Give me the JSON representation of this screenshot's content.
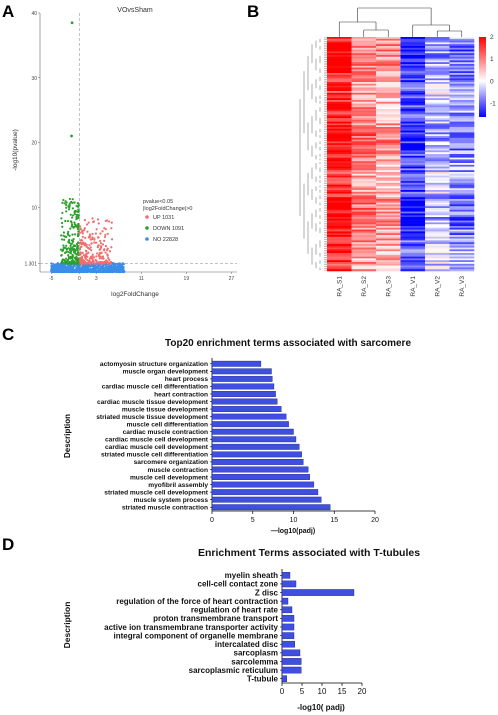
{
  "panels": {
    "a": {
      "letter": "A"
    },
    "b": {
      "letter": "B"
    },
    "c": {
      "letter": "C"
    },
    "d": {
      "letter": "D"
    }
  },
  "colors": {
    "up": "#f26d6d",
    "down": "#2ca02c",
    "no": "#3b8ee8",
    "bar": "#3f4fe0",
    "heat_high": "#ff0000",
    "heat_low": "#0000ff"
  },
  "chart_data": [
    {
      "id": "volcano",
      "type": "scatter",
      "title": "VOvsSham",
      "xlabel": "log2FoldChange",
      "ylabel": "-log10(pvalue)",
      "xlim": [
        -7,
        28
      ],
      "ylim": [
        0,
        40
      ],
      "x_ticks": [
        "-5",
        "0",
        "3",
        "11",
        "19",
        "27"
      ],
      "x_tick_values": [
        -5,
        0,
        3,
        11,
        19,
        27
      ],
      "y_ticks": [
        "1.301",
        "10",
        "20",
        "30",
        "40"
      ],
      "y_tick_values": [
        1.301,
        10,
        20,
        30,
        40
      ],
      "threshold_y": 1.301,
      "threshold_x": 0,
      "legend_title": [
        "pvalue<0.05",
        "|log2FoldChange|>0"
      ],
      "legend_position": "right",
      "series": [
        {
          "name": "UP 1031",
          "color": "#f26d6d"
        },
        {
          "name": "DOWN 1091",
          "color": "#2ca02c"
        },
        {
          "name": "NO 22828",
          "color": "#3b8ee8"
        }
      ],
      "highlight_points": [
        {
          "x": -1.3,
          "y": 38.5
        },
        {
          "x": -1.4,
          "y": 21
        }
      ]
    },
    {
      "id": "heatmap",
      "type": "heatmap",
      "columns": [
        "RA_S1",
        "RA_S2",
        "RA_S3",
        "RA_V1",
        "RA_V2",
        "RA_V3"
      ],
      "colorbar_ticks": [
        "2",
        "1",
        "0",
        "-1"
      ],
      "colorbar_range": [
        -1.6,
        2
      ],
      "column_means": [
        1.8,
        0.9,
        0.7,
        -1.2,
        -0.4,
        -0.7
      ],
      "dendrogram_top": "S1-S2-S3 vs V1-V2-V3",
      "row_dendrogram": "left"
    },
    {
      "id": "sarcomere",
      "type": "bar",
      "orientation": "horizontal",
      "title": "Top20 enrichment terms associated with sarcomere",
      "xlabel": "—log10(padj)",
      "ylabel": "Description",
      "xlim": [
        0,
        20
      ],
      "x_ticks": [
        "0",
        "5",
        "10",
        "15",
        "20"
      ],
      "categories": [
        "actomyosin structure organization",
        "muscle organ development",
        "heart process",
        "cardiac muscle cell differentiation",
        "heart contraction",
        "cardiac muscle tissue development",
        "muscle tissue development",
        "striated muscle tissue development",
        "muscle cell differentiation",
        "cardiac muscle contraction",
        "cardiac muscle cell development",
        "cardiac muscle cell development",
        "striated muscle cell differentiation",
        "sarcomere organization",
        "muscle contraction",
        "muscle cell development",
        "myofibril assembly",
        "striated muscle cell development",
        "muscle system process",
        "striated muscle contraction"
      ],
      "values": [
        6.0,
        7.3,
        7.4,
        7.6,
        7.8,
        8.0,
        8.5,
        9.1,
        9.4,
        10.0,
        10.3,
        10.7,
        11.0,
        11.2,
        11.8,
        12.0,
        12.5,
        13.0,
        13.4,
        14.5
      ]
    },
    {
      "id": "ttubule",
      "type": "bar",
      "orientation": "horizontal",
      "title": "Enrichment Terms associated with T-tubules",
      "xlabel": "-log10( padj)",
      "ylabel": "Description",
      "xlim": [
        0,
        20
      ],
      "x_ticks": [
        "0",
        "5",
        "10",
        "15",
        "20"
      ],
      "categories": [
        "myelin sheath",
        "cell-cell contact zone",
        "Z disc",
        "regulation of the force of heart contraction",
        "regulation of heart rate",
        "proton transmembrane transport",
        "active ion transmembrane transporter activity",
        "integral component of organelle membrane",
        "intercalated disc",
        "sarcoplasm",
        "sarcolemma",
        "sarcoplasmic reticulum",
        "T-tubule"
      ],
      "values": [
        2.0,
        3.5,
        18.0,
        1.5,
        2.5,
        3.0,
        3.0,
        3.0,
        3.2,
        4.5,
        4.8,
        4.8,
        1.2
      ]
    }
  ]
}
